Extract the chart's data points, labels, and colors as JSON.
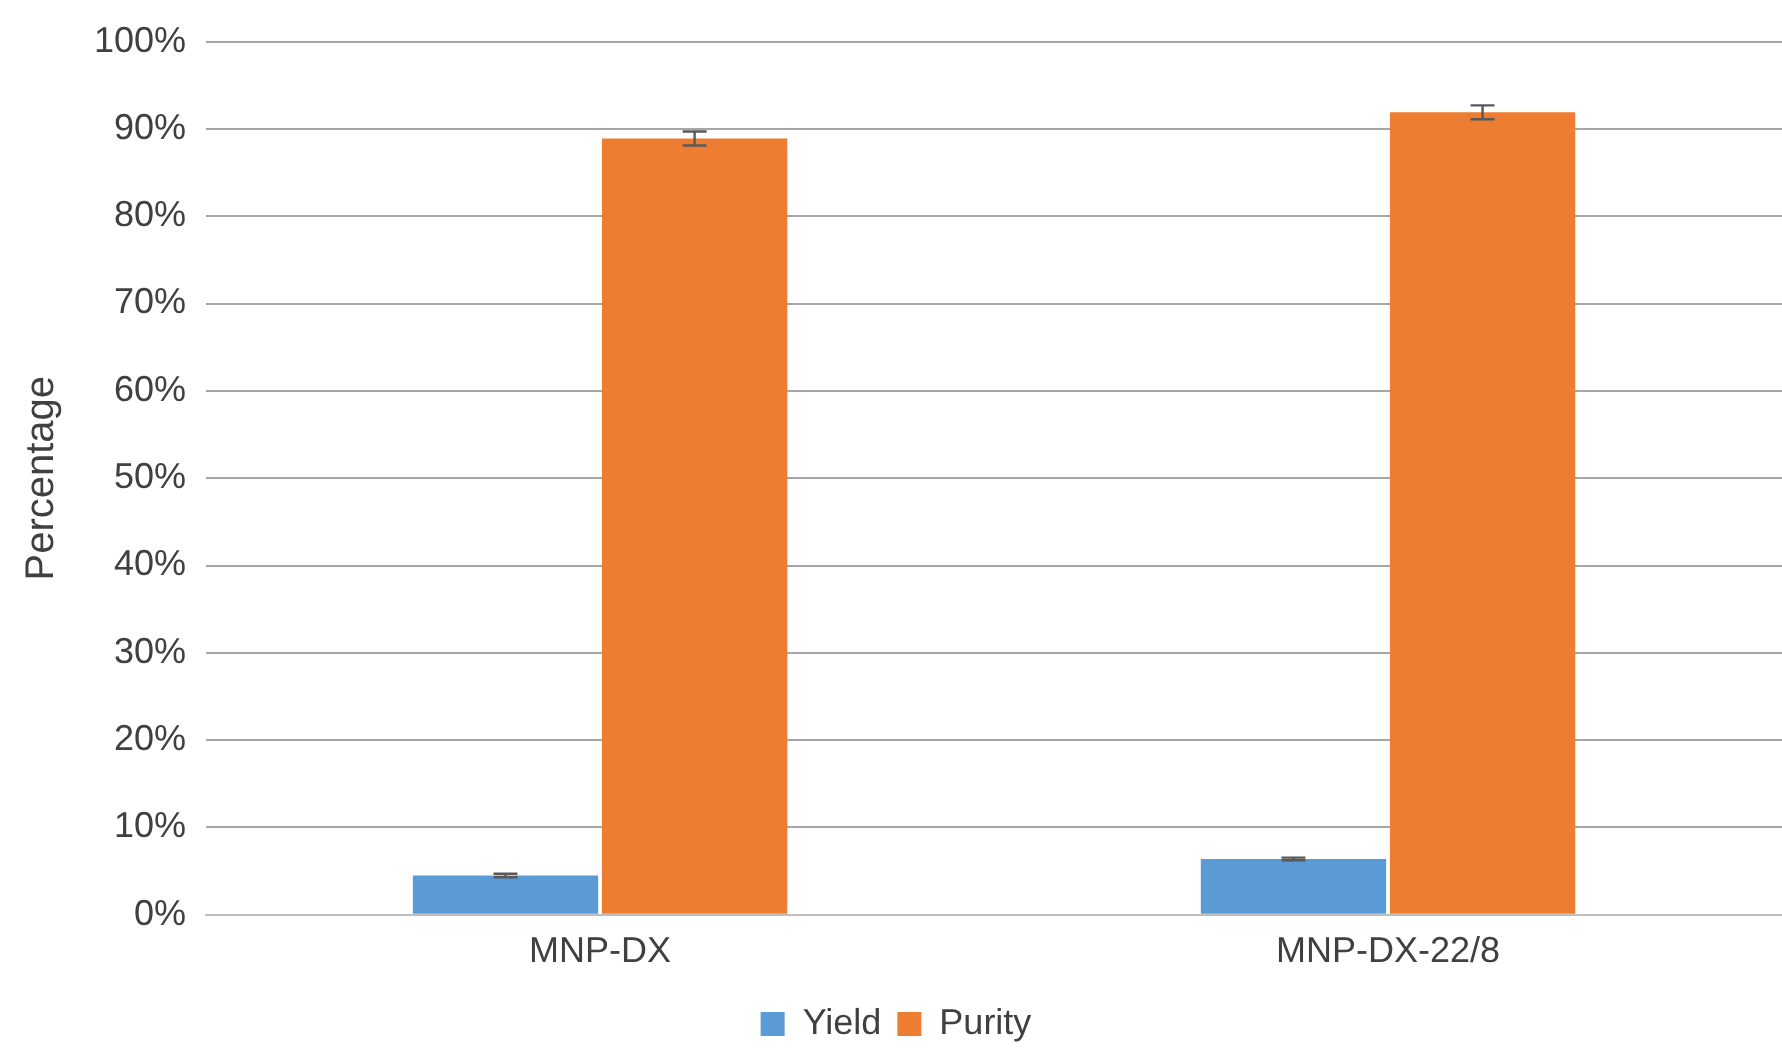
{
  "chart_data": {
    "type": "bar",
    "ylabel": "Percentage",
    "categories": [
      "MNP-DX",
      "MNP-DX-22/8"
    ],
    "series": [
      {
        "name": "Yield",
        "color": "#5b9bd5",
        "values": [
          4.5,
          6.4
        ],
        "errors": [
          0.2,
          0.15
        ]
      },
      {
        "name": "Purity",
        "color": "#ed7d31",
        "values": [
          88.9,
          91.9
        ],
        "errors": [
          0.8,
          0.8
        ]
      }
    ],
    "ylim": [
      0,
      100
    ],
    "yticks": [
      {
        "value": 0,
        "label": "0%"
      },
      {
        "value": 10,
        "label": "10%"
      },
      {
        "value": 20,
        "label": "20%"
      },
      {
        "value": 30,
        "label": "30%"
      },
      {
        "value": 40,
        "label": "40%"
      },
      {
        "value": 50,
        "label": "50%"
      },
      {
        "value": 60,
        "label": "60%"
      },
      {
        "value": 70,
        "label": "70%"
      },
      {
        "value": 80,
        "label": "80%"
      },
      {
        "value": 90,
        "label": "90%"
      },
      {
        "value": 100,
        "label": "100%"
      }
    ],
    "grid": "y",
    "legend": "bottom"
  }
}
